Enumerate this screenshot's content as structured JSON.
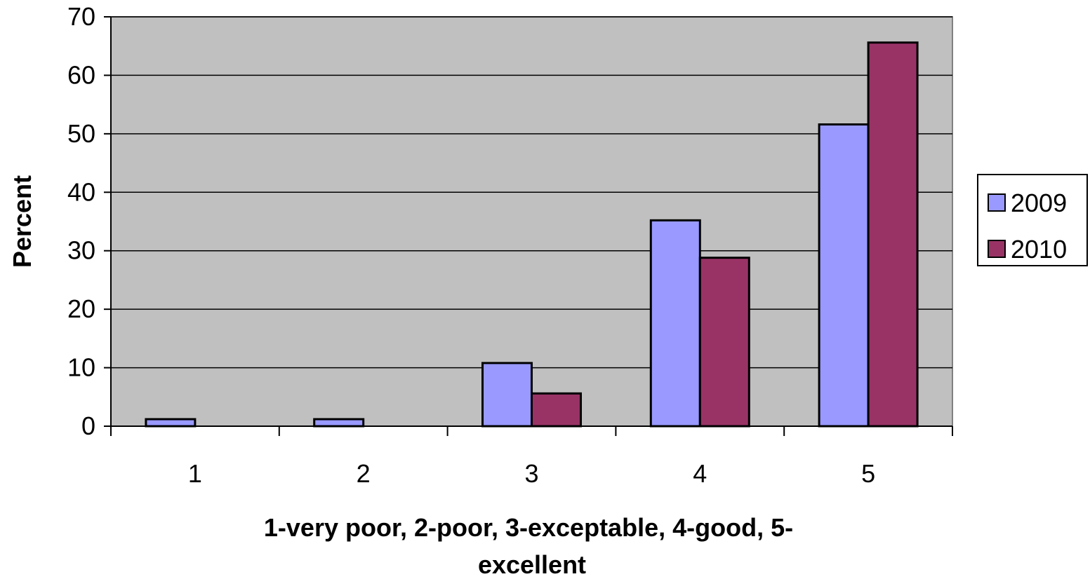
{
  "chart_data": {
    "type": "bar",
    "categories": [
      "1",
      "2",
      "3",
      "4",
      "5"
    ],
    "series": [
      {
        "name": "2009",
        "values": [
          1.2,
          1.2,
          10.8,
          35.2,
          51.6
        ],
        "color": "#9999ff"
      },
      {
        "name": "2010",
        "values": [
          0,
          0,
          5.6,
          28.8,
          65.6
        ],
        "color": "#993366"
      }
    ],
    "ylabel": "Percent",
    "xlabel": "1-very poor, 2-poor, 3-exceptable, 4-good, 5-excellent",
    "xlabel_lines": [
      "1-very poor, 2-poor, 3-exceptable, 4-good, 5-",
      "excellent"
    ],
    "ylim": [
      0,
      70
    ],
    "yticks": [
      "0",
      "10",
      "20",
      "30",
      "40",
      "50",
      "60",
      "70"
    ],
    "grid": true,
    "legend": "right",
    "plot_background": "#c0c0c0"
  }
}
